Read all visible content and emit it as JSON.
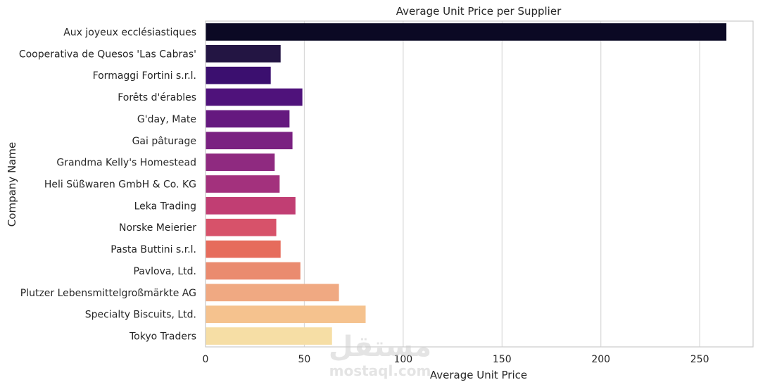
{
  "chart_data": {
    "type": "bar",
    "orientation": "horizontal",
    "title": "Average Unit Price per Supplier",
    "xlabel": "Average Unit Price",
    "ylabel": "Company Name",
    "xlim": [
      0,
      277
    ],
    "xticks": [
      0,
      50,
      100,
      150,
      200,
      250
    ],
    "grid": "vertical",
    "categories": [
      "Aux joyeux ecclésiastiques",
      "Cooperativa de Quesos 'Las Cabras'",
      "Formaggi Fortini s.r.l.",
      "Forêts d'érables",
      "G'day, Mate",
      "Gai pâturage",
      "Grandma Kelly's Homestead",
      "Heli Süßwaren GmbH & Co. KG",
      "Leka Trading",
      "Norske Meierier",
      "Pasta Buttini s.r.l.",
      "Pavlova, Ltd.",
      "Plutzer Lebensmittelgroßmärkte AG",
      "Specialty Biscuits, Ltd.",
      "Tokyo Traders"
    ],
    "values": [
      263.5,
      38.0,
      33.0,
      49.0,
      42.5,
      44.0,
      35.0,
      37.5,
      45.5,
      35.8,
      38.0,
      48.0,
      67.5,
      81.0,
      64.0
    ],
    "colors": [
      "#0b0924",
      "#231543",
      "#3b0f6f",
      "#4f127b",
      "#65197f",
      "#7a2181",
      "#8f2a80",
      "#a3317d",
      "#c13e73",
      "#d7526a",
      "#e66c5c",
      "#ea8b6f",
      "#f0a982",
      "#f5c28e",
      "#f6dea5"
    ]
  },
  "watermark": {
    "arabic": "مستقل",
    "latin": "mostaql.com"
  }
}
